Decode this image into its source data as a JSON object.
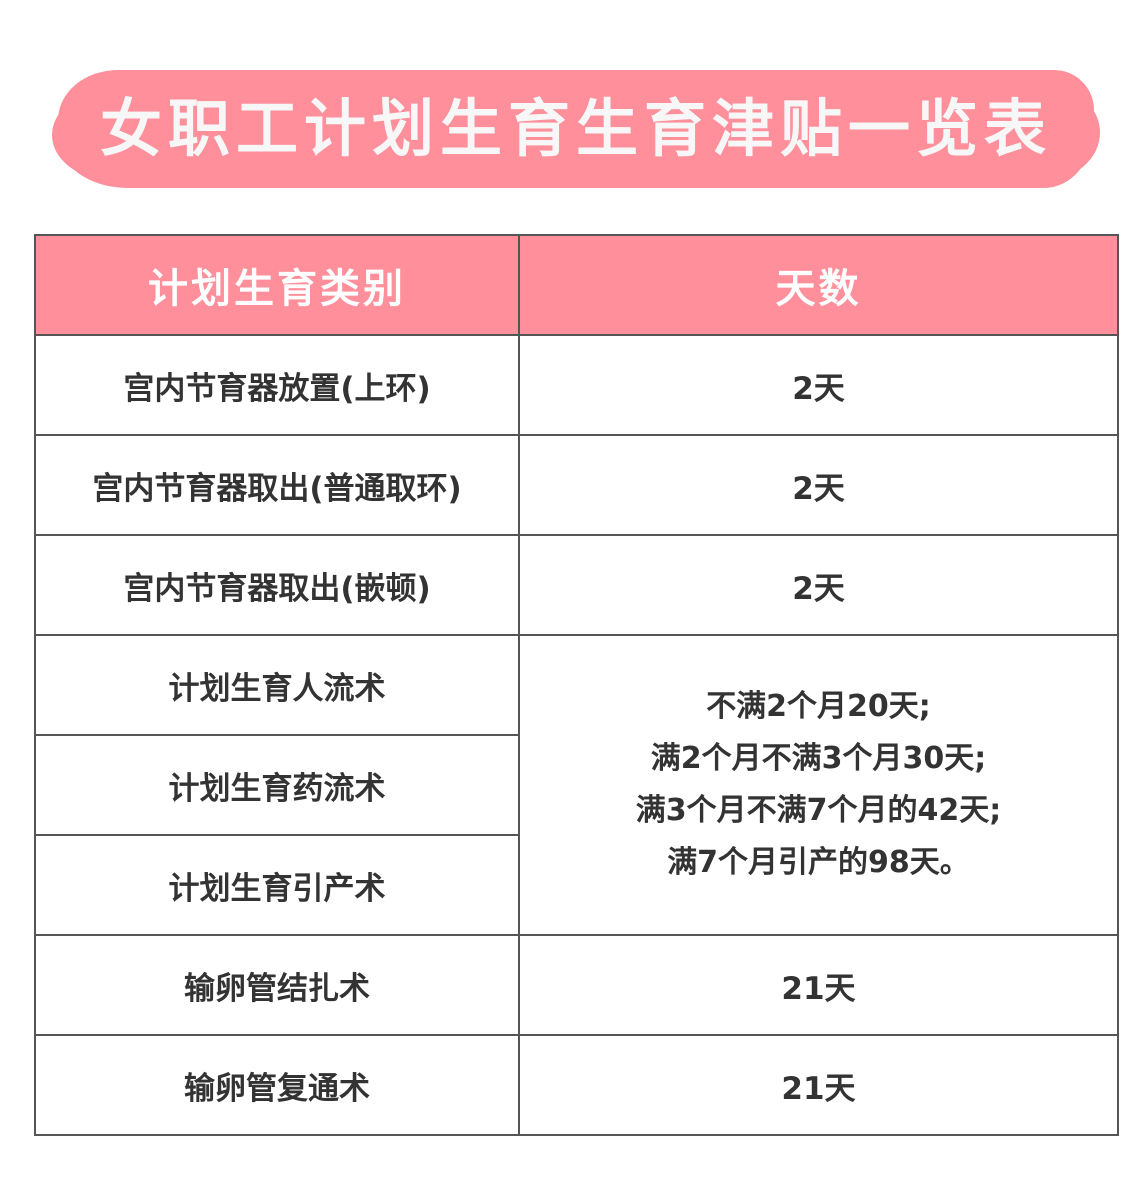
{
  "title": "女职工计划生育生育津贴一览表",
  "colors": {
    "accent": "#ff8f9b",
    "border": "#555555",
    "text": "#333333"
  },
  "table": {
    "headers": [
      "计划生育类别",
      "天数"
    ],
    "rows": [
      {
        "category": "宫内节育器放置(上环)",
        "days": "2天"
      },
      {
        "category": "宫内节育器取出(普通取环)",
        "days": "2天"
      },
      {
        "category": "宫内节育器取出(嵌顿)",
        "days": "2天"
      },
      {
        "category": "计划生育人流术"
      },
      {
        "category": "计划生育药流术"
      },
      {
        "category": "计划生育引产术"
      },
      {
        "category": "输卵管结扎术",
        "days": "21天"
      },
      {
        "category": "输卵管复通术",
        "days": "21天"
      }
    ],
    "merged_days_lines": [
      "不满2个月20天;",
      "满2个月不满3个月30天;",
      "满3个月不满7个月的42天;",
      "满7个月引产的98天。"
    ]
  }
}
